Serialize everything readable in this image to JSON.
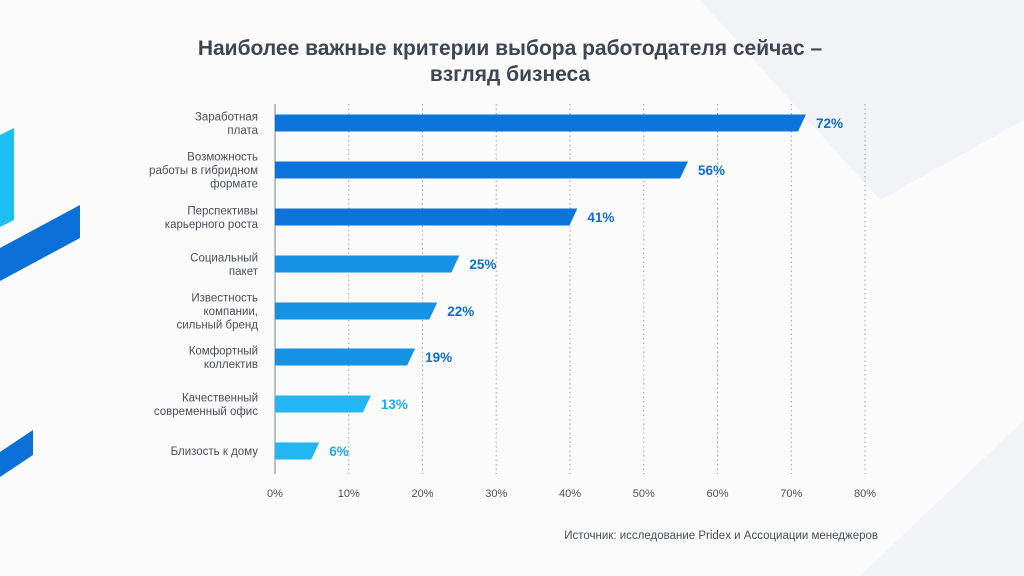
{
  "colors": {
    "bar_dark": "#0a74da",
    "bar_mid": "#1592e2",
    "bar_light": "#22b6f2",
    "label_dark": "#0a6fd0",
    "label_light": "#1fa8ea",
    "grid": "#9aa3ad",
    "axis": "#7b8590",
    "accent_stripe_dark": "#0b6fd8",
    "accent_stripe_light": "#1ec0f4"
  },
  "chart_data": {
    "type": "bar",
    "orientation": "horizontal",
    "title": "Наиболее важные критерии выбора работодателя сейчас – взгляд бизнеса",
    "title_lines": [
      "Наиболее важные критерии выбора работодателя сейчас –",
      "взгляд бизнеса"
    ],
    "categories": [
      [
        "Заработная",
        "плата"
      ],
      [
        "Возможность",
        "работы в гибридном",
        "формате"
      ],
      [
        "Перспективы",
        "карьерного роста"
      ],
      [
        "Социальный",
        "пакет"
      ],
      [
        "Известность",
        "компании,",
        "сильный бренд"
      ],
      [
        "Комфортный",
        "коллектив"
      ],
      [
        "Качественный",
        "современный офис"
      ],
      [
        "Близость к дому"
      ]
    ],
    "values": [
      72,
      56,
      41,
      25,
      22,
      19,
      13,
      6
    ],
    "value_labels": [
      "72%",
      "56%",
      "41%",
      "25%",
      "22%",
      "19%",
      "13%",
      "6%"
    ],
    "xlim": [
      0,
      80
    ],
    "ticks": [
      0,
      10,
      20,
      30,
      40,
      50,
      60,
      70,
      80
    ],
    "tick_labels": [
      "0%",
      "10%",
      "20%",
      "30%",
      "40%",
      "50%",
      "60%",
      "70%",
      "80%"
    ],
    "grid": "vertical dotted"
  },
  "source": "Источник: исследование Pridex и Ассоциации менеджеров"
}
